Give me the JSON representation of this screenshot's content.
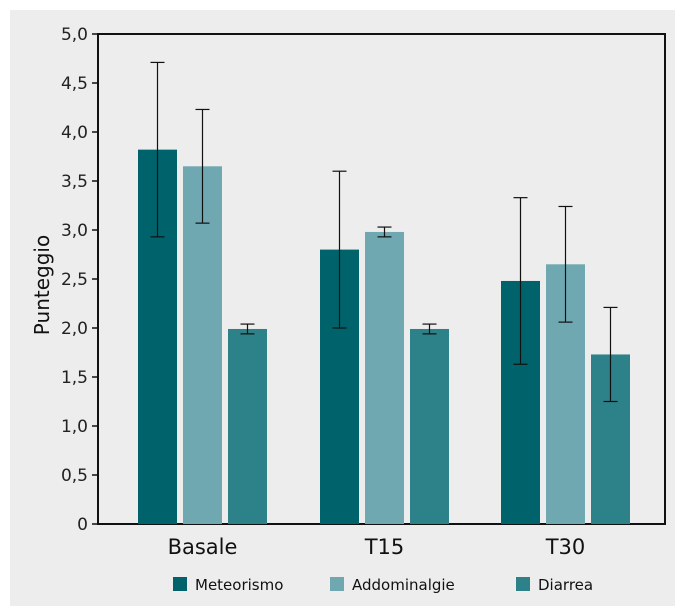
{
  "chart_data": {
    "type": "bar",
    "categories": [
      "Basale",
      "T15",
      "T30"
    ],
    "series": [
      {
        "name": "Meteorismo",
        "color": "#00636b",
        "values": [
          3.82,
          2.8,
          2.48
        ],
        "error": [
          0.89,
          0.8,
          0.85
        ]
      },
      {
        "name": "Addominalgie",
        "color": "#6fa8b1",
        "values": [
          3.65,
          2.98,
          2.65
        ],
        "error": [
          0.58,
          0.05,
          0.59
        ]
      },
      {
        "name": "Diarrea",
        "color": "#2d8188",
        "values": [
          1.99,
          1.99,
          1.73
        ],
        "error": [
          0.05,
          0.05,
          0.48
        ]
      }
    ],
    "ylabel": "Punteggio",
    "ylim": [
      0,
      5
    ],
    "yticks": [
      0,
      0.5,
      1.0,
      1.5,
      2.0,
      2.5,
      3.0,
      3.5,
      4.0,
      4.5,
      5.0
    ],
    "ytick_labels": [
      "0",
      "0,5",
      "1,0",
      "1,5",
      "2,0",
      "2,5",
      "3,0",
      "3,5",
      "4,0",
      "4,5",
      "5,0"
    ],
    "grid": false,
    "legend_position": "bottom"
  }
}
